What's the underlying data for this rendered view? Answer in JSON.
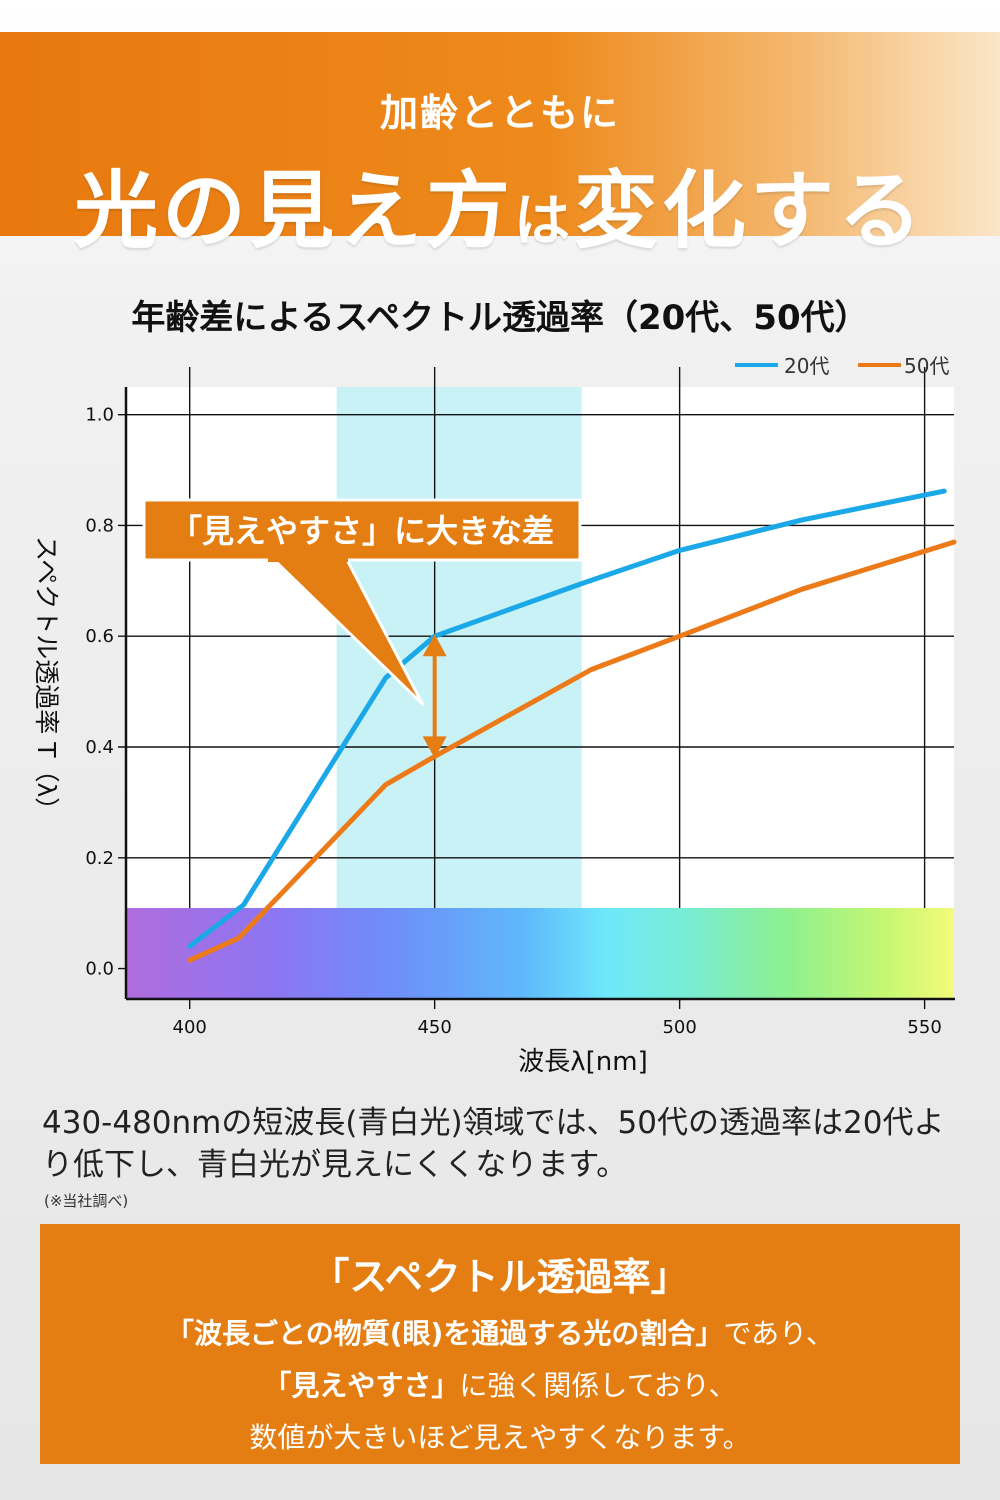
{
  "header": {
    "subtitle": "加齢とともに",
    "title_a": "光の見え方",
    "title_b": "は",
    "title_c": "変化する"
  },
  "chart_data": {
    "type": "line",
    "title": "年齢差によるスペクトル透過率（20代、50代）",
    "xlabel": "波長λ[nm]",
    "ylabel": "スペクトル透過率 T（λ）",
    "xlim": [
      387,
      556
    ],
    "ylim": [
      -0.055,
      1.05
    ],
    "x_ticks": [
      400,
      450,
      500,
      550
    ],
    "y_ticks": [
      0.0,
      0.2,
      0.4,
      0.6,
      0.8,
      1.0
    ],
    "x_tick_labels": [
      "400",
      "450",
      "500",
      "550"
    ],
    "y_tick_labels": [
      "0.0",
      "0.2",
      "0.4",
      "0.6",
      "0.8",
      "1.0"
    ],
    "grid": true,
    "legend": "top-right",
    "highlight_band": [
      430,
      480
    ],
    "series": [
      {
        "name": "20代",
        "color": "#1aa8e8",
        "points": [
          [
            400,
            0.04
          ],
          [
            411,
            0.115
          ],
          [
            440,
            0.525
          ],
          [
            450,
            0.6
          ],
          [
            480,
            0.695
          ],
          [
            500,
            0.755
          ],
          [
            525,
            0.81
          ],
          [
            554,
            0.862
          ]
        ]
      },
      {
        "name": "50代",
        "color": "#ec7a18",
        "points": [
          [
            400,
            0.015
          ],
          [
            410,
            0.055
          ],
          [
            440,
            0.332
          ],
          [
            450,
            0.383
          ],
          [
            482,
            0.54
          ],
          [
            500,
            0.6
          ],
          [
            525,
            0.685
          ],
          [
            556,
            0.77
          ]
        ]
      }
    ],
    "annotation": {
      "text": "「見えやすさ」に大きな差",
      "x": 450,
      "y_from": 0.383,
      "y_to": 0.6
    }
  },
  "description": "430-480nmの短波長(青白光)領域では、50代の透過率は20代より低下し、青白光が見えにくくなります。",
  "note": "(※当社調べ)",
  "box": {
    "title": "「スペクトル透過率」",
    "line1_bold": "「波長ごとの物質(眼)を通過する光の割合」",
    "line1_rest": "であり、",
    "line2_bold": "「見えやすさ」",
    "line2_rest": "に強く関係しており、",
    "line3": "数値が大きいほど見えやすくなります。"
  },
  "colors": {
    "accent_orange": "#e57e12",
    "line_20s": "#1aa8e8",
    "line_50s": "#ec7a18",
    "band": "#c8f2f6"
  }
}
